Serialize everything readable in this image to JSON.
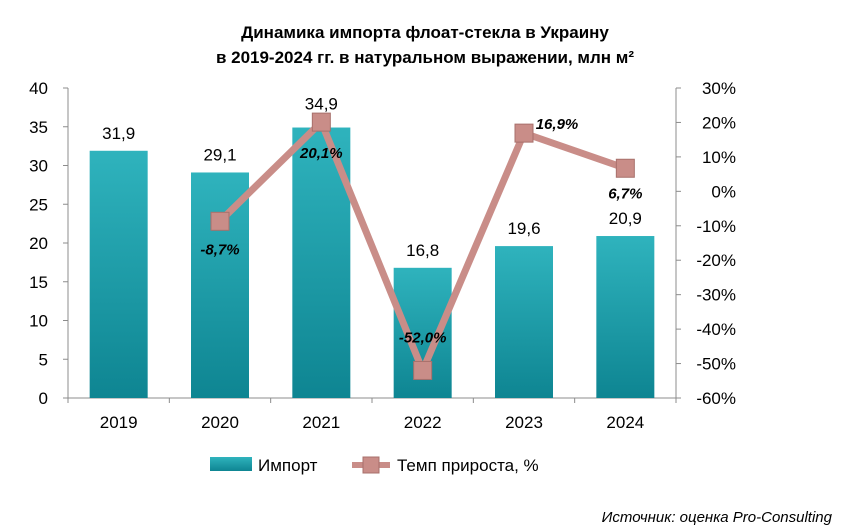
{
  "chart_data": {
    "type": "bar+line",
    "title": "Динамика импорта флоат-стекла в Украину",
    "subtitle": "в 2019-2024 гг. в натуральном выражении, млн м²",
    "categories": [
      "2019",
      "2020",
      "2021",
      "2022",
      "2023",
      "2024"
    ],
    "series": [
      {
        "name": "Импорт",
        "type": "bar",
        "axis": "left",
        "values": [
          31.9,
          29.1,
          34.9,
          16.8,
          19.6,
          20.9
        ],
        "labels": [
          "31,9",
          "29,1",
          "34,9",
          "16,8",
          "19,6",
          "20,9"
        ],
        "color": "#1a9ba6"
      },
      {
        "name": "Темп прироста, %",
        "type": "line",
        "axis": "right",
        "values": [
          null,
          -8.7,
          20.1,
          -52.0,
          16.9,
          6.7
        ],
        "labels": [
          null,
          "-8,7%",
          "20,1%",
          "-52,0%",
          "16,9%",
          "6,7%"
        ],
        "color": "#c98d88"
      }
    ],
    "left_axis": {
      "ylim": [
        0,
        40
      ],
      "ticks": [
        0,
        5,
        10,
        15,
        20,
        25,
        30,
        35,
        40
      ],
      "tick_labels": [
        "0",
        "5",
        "10",
        "15",
        "20",
        "25",
        "30",
        "35",
        "40"
      ]
    },
    "right_axis": {
      "ylim": [
        -60,
        30
      ],
      "ticks": [
        -60,
        -50,
        -40,
        -30,
        -20,
        -10,
        0,
        10,
        20,
        30
      ],
      "tick_labels": [
        "-60%",
        "-50%",
        "-40%",
        "-30%",
        "-20%",
        "-10%",
        "0%",
        "10%",
        "20%",
        "30%"
      ]
    },
    "legend_position": "bottom",
    "grid": false
  },
  "source": "Источник: оценка Pro-Consulting",
  "colors": {
    "bar_top": "#2fb3bd",
    "bar_bottom": "#0e8592",
    "line": "#c98d88",
    "marker": "#c98d88",
    "marker_stroke": "#a8706b",
    "axis": "#8c8c8c"
  }
}
